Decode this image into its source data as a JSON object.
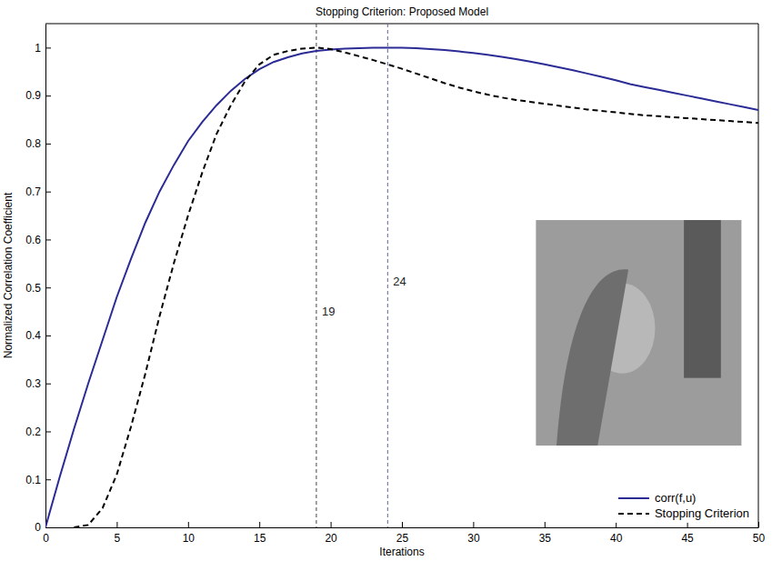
{
  "chart_data": {
    "type": "line",
    "title": "Stopping Criterion: Proposed Model",
    "x_label": "Iterations",
    "y_label": "Normalized Correlation Coefficient",
    "x": [
      0,
      1,
      2,
      3,
      4,
      5,
      6,
      7,
      8,
      9,
      10,
      11,
      12,
      13,
      14,
      15,
      16,
      17,
      18,
      19,
      20,
      21,
      22,
      23,
      24,
      25,
      26,
      27,
      28,
      29,
      30,
      31,
      32,
      33,
      34,
      35,
      36,
      37,
      38,
      39,
      40,
      41,
      42,
      43,
      44,
      45,
      46,
      47,
      48,
      49,
      50
    ],
    "series": [
      {
        "name": "corr(f,u)",
        "color": "#2b2b96",
        "line_style": "solid",
        "values": [
          0,
          0.105,
          0.205,
          0.3,
          0.39,
          0.48,
          0.56,
          0.635,
          0.7,
          0.755,
          0.805,
          0.845,
          0.88,
          0.91,
          0.935,
          0.955,
          0.97,
          0.98,
          0.988,
          0.993,
          0.996,
          0.998,
          0.999,
          1.0,
          1.0,
          1.0,
          0.999,
          0.997,
          0.995,
          0.992,
          0.989,
          0.985,
          0.981,
          0.976,
          0.971,
          0.965,
          0.959,
          0.953,
          0.946,
          0.939,
          0.932,
          0.924,
          0.918,
          0.912,
          0.906,
          0.9,
          0.894,
          0.888,
          0.882,
          0.876,
          0.87
        ]
      },
      {
        "name": "Stopping Criterion",
        "color": "#000000",
        "line_style": "dashed",
        "values": [
          null,
          null,
          0,
          0.005,
          0.04,
          0.11,
          0.21,
          0.32,
          0.44,
          0.55,
          0.65,
          0.74,
          0.82,
          0.88,
          0.93,
          0.965,
          0.985,
          0.993,
          0.998,
          1.0,
          0.997,
          0.99,
          0.982,
          0.974,
          0.965,
          0.956,
          0.946,
          0.936,
          0.926,
          0.917,
          0.909,
          0.902,
          0.896,
          0.891,
          0.887,
          0.883,
          0.879,
          0.875,
          0.871,
          0.868,
          0.865,
          0.862,
          0.859,
          0.857,
          0.855,
          0.853,
          0.851,
          0.849,
          0.847,
          0.845,
          0.843
        ]
      }
    ],
    "vlines": [
      {
        "x": 19,
        "label": "19",
        "color": "#444444"
      },
      {
        "x": 24,
        "label": "24",
        "color": "#5c6899"
      }
    ],
    "xlim": [
      0,
      50
    ],
    "xticks": [
      0,
      5,
      10,
      15,
      20,
      25,
      30,
      35,
      40,
      45,
      50
    ],
    "ylim": [
      0,
      1.05
    ],
    "yticks": [
      0,
      0.1,
      0.2,
      0.3,
      0.4,
      0.5,
      0.6,
      0.7,
      0.8,
      0.9,
      1
    ],
    "legend": "lower right",
    "grid": false
  }
}
